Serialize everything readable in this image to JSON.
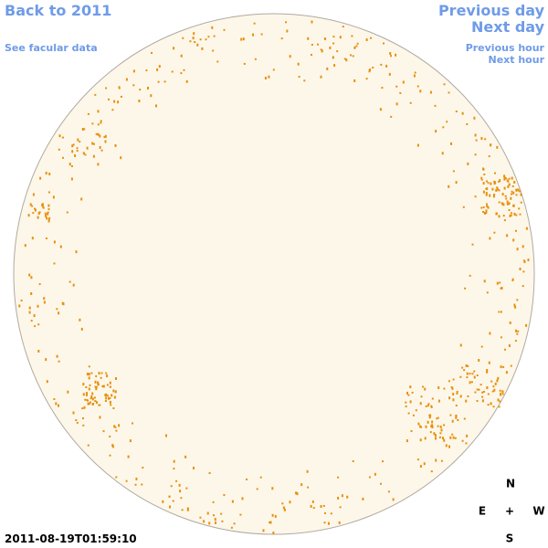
{
  "nav": {
    "back": "Back to 2011",
    "see_facular": "See facular data",
    "previous_day": "Previous day",
    "next_day": "Next day",
    "previous_hour": "Previous hour",
    "next_hour": "Next hour"
  },
  "timestamp": "2011-08-19T01:59:10",
  "compass": {
    "north": "N",
    "east": "E",
    "center": "+",
    "west": "W",
    "south": "S"
  }
}
